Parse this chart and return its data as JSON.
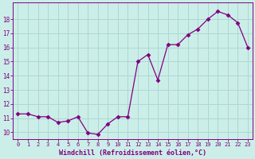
{
  "x": [
    0,
    1,
    2,
    3,
    4,
    5,
    6,
    7,
    8,
    9,
    10,
    11,
    12,
    13,
    14,
    15,
    16,
    17,
    18,
    19,
    20,
    21,
    22,
    23
  ],
  "y": [
    11.3,
    11.3,
    11.1,
    11.1,
    10.7,
    10.8,
    11.1,
    9.95,
    9.85,
    10.6,
    11.1,
    11.1,
    15.0,
    15.5,
    13.7,
    16.2,
    16.2,
    16.9,
    17.3,
    18.0,
    18.55,
    18.3,
    17.75,
    16.0
  ],
  "line_color": "#800080",
  "marker": "D",
  "marker_size": 2.5,
  "bg_color": "#cceee8",
  "grid_color": "#aad8d2",
  "xlabel": "Windchill (Refroidissement éolien,°C)",
  "ylabel": "",
  "ylim": [
    9.5,
    19.2
  ],
  "xlim": [
    -0.5,
    23.5
  ],
  "yticks": [
    10,
    11,
    12,
    13,
    14,
    15,
    16,
    17,
    18
  ],
  "xticks": [
    0,
    1,
    2,
    3,
    4,
    5,
    6,
    7,
    8,
    9,
    10,
    11,
    12,
    13,
    14,
    15,
    16,
    17,
    18,
    19,
    20,
    21,
    22,
    23
  ],
  "tick_fontsize": 5.0,
  "ylabel_fontsize": 5.5,
  "xlabel_fontsize": 6.0,
  "tick_color": "#800080",
  "label_color": "#800080",
  "font_name": "monospace"
}
